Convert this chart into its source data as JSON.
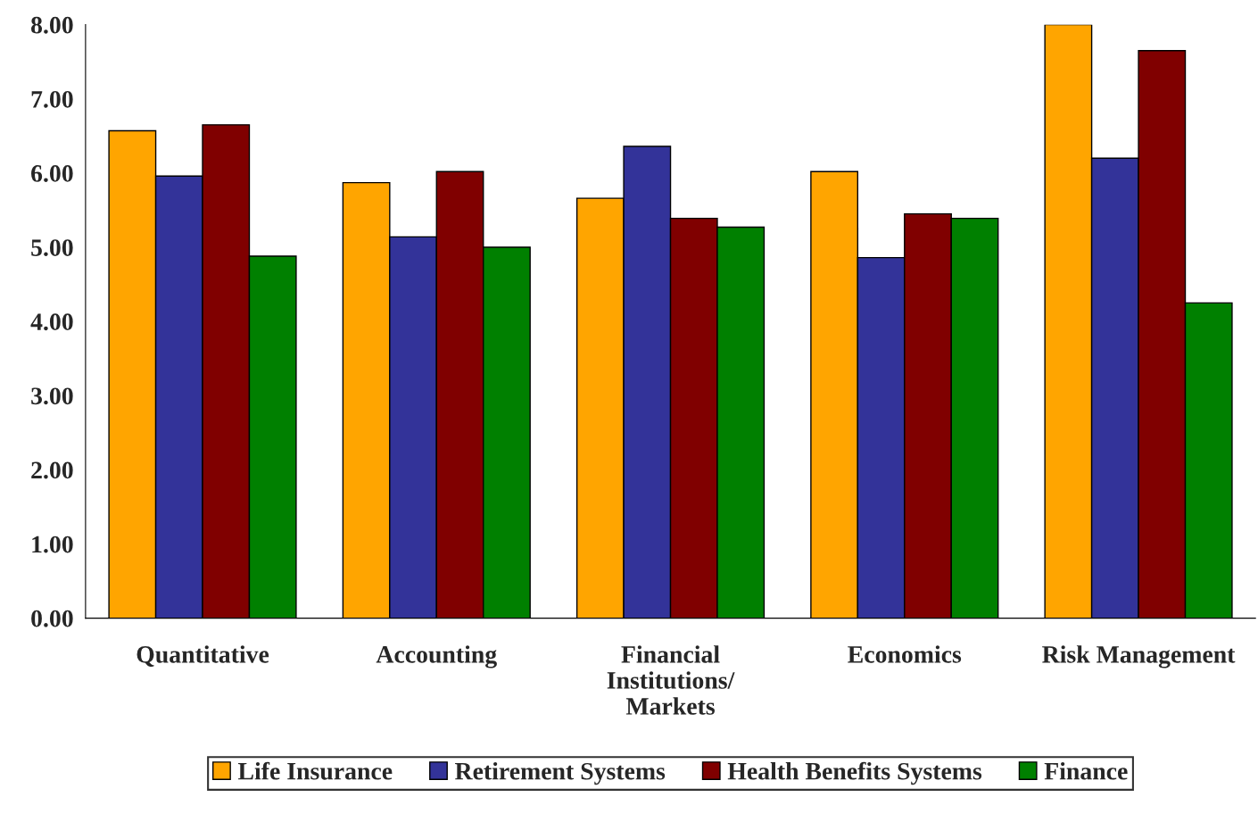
{
  "chart_data": {
    "type": "bar",
    "categories": [
      "Quantitative",
      "Accounting",
      "Financial\nInstitutions/\nMarkets",
      "Economics",
      "Risk Management"
    ],
    "series": [
      {
        "name": "Life Insurance",
        "color": "#ffa500",
        "values": [
          6.57,
          5.87,
          5.66,
          6.02,
          8.0
        ]
      },
      {
        "name": "Retirement Systems",
        "color": "#333399",
        "values": [
          5.96,
          5.14,
          6.36,
          4.86,
          6.2
        ]
      },
      {
        "name": "Health Benefits Systems",
        "color": "#800000",
        "values": [
          6.65,
          6.02,
          5.39,
          5.45,
          7.65
        ]
      },
      {
        "name": "Finance",
        "color": "#008000",
        "values": [
          4.88,
          5.0,
          5.27,
          5.39,
          4.25
        ]
      }
    ],
    "ylim": [
      0,
      8
    ],
    "yticks": [
      {
        "value": 0,
        "label": "0.00"
      },
      {
        "value": 1,
        "label": "1.00"
      },
      {
        "value": 2,
        "label": "2.00"
      },
      {
        "value": 3,
        "label": "3.00"
      },
      {
        "value": 4,
        "label": "4.00"
      },
      {
        "value": 5,
        "label": "5.00"
      },
      {
        "value": 6,
        "label": "6.00"
      },
      {
        "value": 7,
        "label": "7.00"
      },
      {
        "value": 8,
        "label": "8.00"
      }
    ],
    "grid": false,
    "legend": "bottom"
  }
}
